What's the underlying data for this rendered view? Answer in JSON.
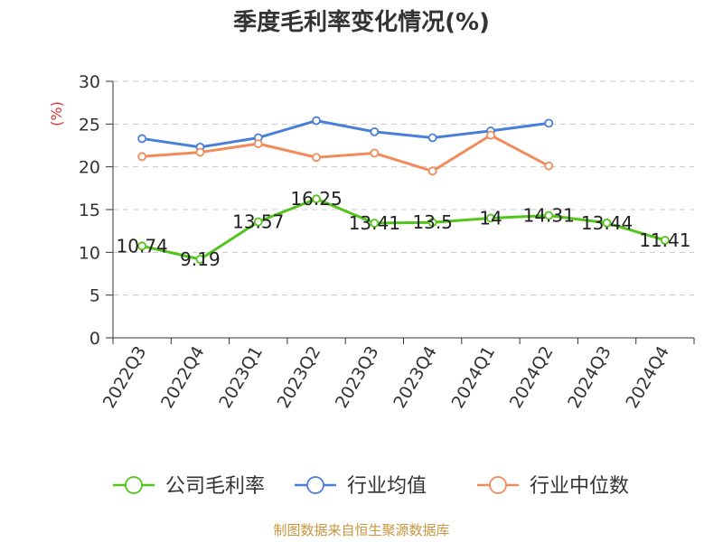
{
  "title": "季度毛利率变化情况(%)",
  "source": "制图数据来自恒生聚源数据库",
  "chart_data": {
    "type": "line",
    "title": "季度毛利率变化情况(%)",
    "ylabel": "(%)",
    "ylim": [
      0,
      30
    ],
    "yticks": [
      0,
      5,
      10,
      15,
      20,
      25,
      30
    ],
    "grid": true,
    "legend_position": "bottom",
    "categories": [
      "2022Q3",
      "2022Q4",
      "2023Q1",
      "2023Q2",
      "2023Q3",
      "2023Q4",
      "2024Q1",
      "2024Q2",
      "2024Q3",
      "2024Q4"
    ],
    "series": [
      {
        "name": "公司毛利率",
        "color": "#52c41a",
        "values": [
          10.74,
          9.19,
          13.57,
          16.25,
          13.41,
          13.5,
          14,
          14.31,
          13.44,
          11.41
        ],
        "labels": [
          "10.74",
          "9.19",
          "13.57",
          "16.25",
          "13.41",
          "13.5",
          "14",
          "14.31",
          "13.44",
          "11.41"
        ]
      },
      {
        "name": "行业均值",
        "color": "#4a7fd8",
        "values": [
          23.3,
          22.3,
          23.4,
          25.4,
          24.1,
          23.4,
          24.2,
          25.1,
          null,
          null
        ]
      },
      {
        "name": "行业中位数",
        "color": "#f28b5b",
        "values": [
          21.2,
          21.7,
          22.7,
          21.1,
          21.6,
          19.5,
          23.7,
          20.1,
          null,
          null
        ]
      }
    ]
  }
}
